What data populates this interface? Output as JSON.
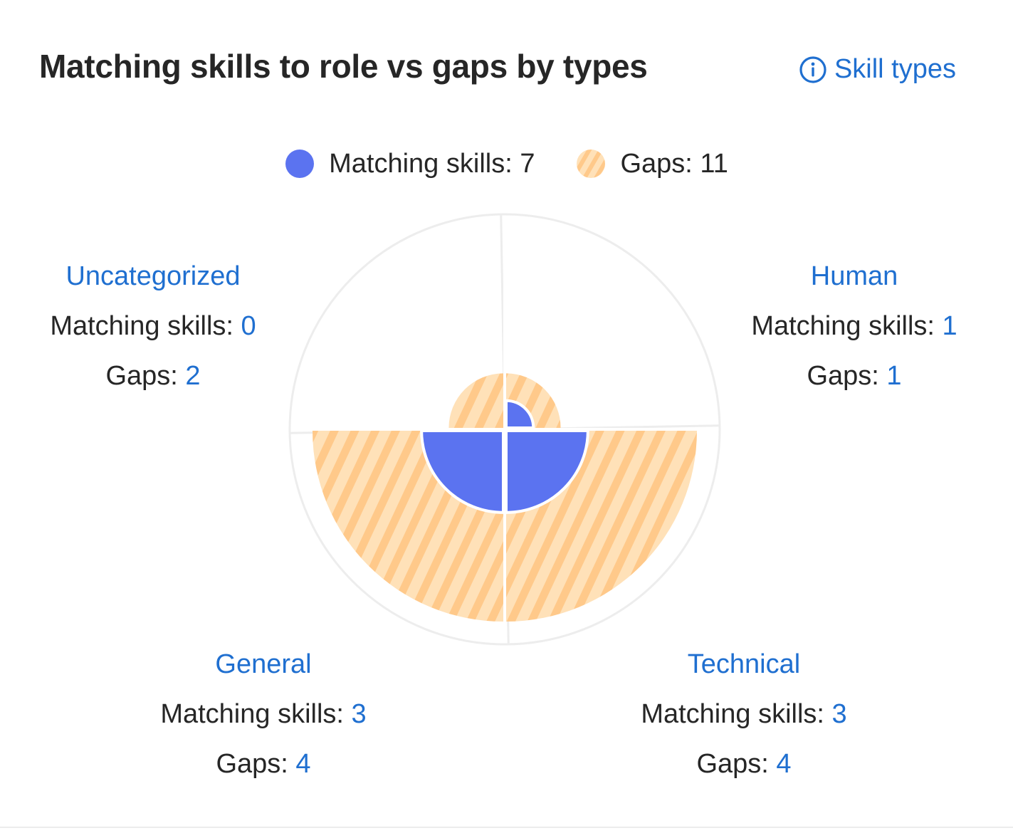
{
  "header": {
    "title": "Matching skills to role vs gaps by types",
    "info_link_label": "Skill types"
  },
  "legend": {
    "matching_label": "Matching skills: ",
    "matching_total": "7",
    "gaps_label": "Gaps: ",
    "gaps_total": "11"
  },
  "colors": {
    "matching": "#5b73f0",
    "gaps": "#ffd7a3",
    "gaps_stripe": "#ffc98a",
    "link": "#1f6fd0",
    "ring": "#ededed"
  },
  "categories": [
    {
      "name": "Uncategorized",
      "matching_label": "Matching skills: ",
      "matching": "0",
      "gaps_label": "Gaps: ",
      "gaps": "2"
    },
    {
      "name": "Human",
      "matching_label": "Matching skills: ",
      "matching": "1",
      "gaps_label": "Gaps: ",
      "gaps": "1"
    },
    {
      "name": "General",
      "matching_label": "Matching skills: ",
      "matching": "3",
      "gaps_label": "Gaps: ",
      "gaps": "4"
    },
    {
      "name": "Technical",
      "matching_label": "Matching skills: ",
      "matching": "3",
      "gaps_label": "Gaps: ",
      "gaps": "4"
    }
  ],
  "chart_data": {
    "type": "polar-area",
    "title": "Matching skills to role vs gaps by types",
    "categories": [
      "Uncategorized",
      "Human",
      "General",
      "Technical"
    ],
    "series": [
      {
        "name": "Matching skills",
        "values": [
          0,
          1,
          3,
          3
        ]
      },
      {
        "name": "Gaps",
        "values": [
          2,
          1,
          4,
          4
        ]
      }
    ],
    "stacked": true,
    "max_total": 7,
    "quadrants": [
      "top-left",
      "top-right",
      "bottom-left",
      "bottom-right"
    ],
    "legend_position": "top-center",
    "totals": {
      "matching": 7,
      "gaps": 11
    }
  }
}
